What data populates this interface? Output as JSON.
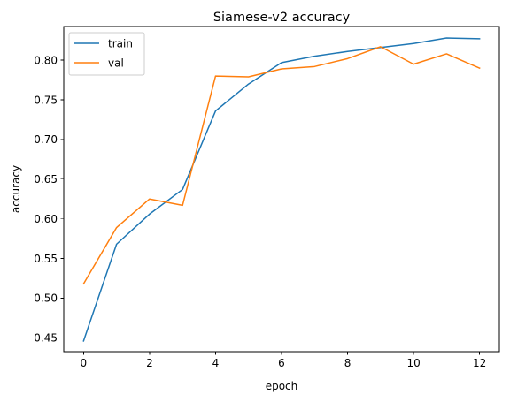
{
  "chart_data": {
    "type": "line",
    "title": "Siamese-v2 accuracy",
    "xlabel": "epoch",
    "ylabel": "accuracy",
    "xlim": [
      -0.6,
      12.6
    ],
    "ylim": [
      0.4325,
      0.8425
    ],
    "xticks": [
      "0",
      "2",
      "4",
      "6",
      "8",
      "10",
      "12"
    ],
    "yticks": [
      "0.45",
      "0.50",
      "0.55",
      "0.60",
      "0.65",
      "0.70",
      "0.75",
      "0.80"
    ],
    "grid": false,
    "legend_position": "upper-left",
    "x": [
      0,
      1,
      2,
      3,
      4,
      5,
      6,
      7,
      8,
      9,
      10,
      11,
      12
    ],
    "series": [
      {
        "name": "train",
        "color": "#1f77b4",
        "values": [
          0.446,
          0.568,
          0.606,
          0.637,
          0.736,
          0.77,
          0.797,
          0.805,
          0.811,
          0.816,
          0.821,
          0.828,
          0.827
        ]
      },
      {
        "name": "val",
        "color": "#ff7f0e",
        "values": [
          0.518,
          0.589,
          0.625,
          0.617,
          0.78,
          0.779,
          0.789,
          0.792,
          0.802,
          0.817,
          0.795,
          0.808,
          0.79
        ]
      }
    ]
  }
}
